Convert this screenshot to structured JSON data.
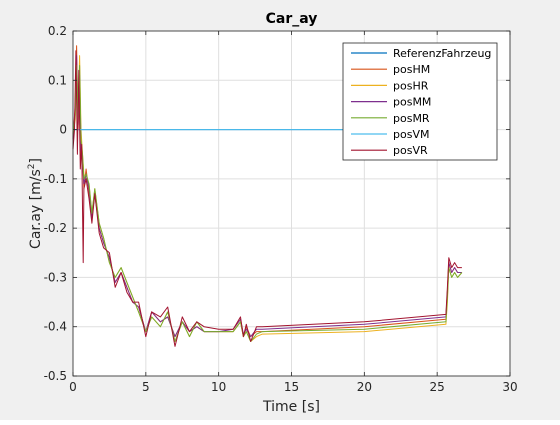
{
  "chart_data": {
    "type": "line",
    "title": "Car_ay",
    "xlabel": "Time [s]",
    "ylabel_main": "Car.ay [m/s",
    "ylabel_sup": "2",
    "ylabel_close": "]",
    "xlim": [
      0,
      30
    ],
    "ylim": [
      -0.5,
      0.2
    ],
    "xticks": [
      0,
      5,
      10,
      15,
      20,
      25,
      30
    ],
    "xtick_labels": [
      "0",
      "5",
      "10",
      "15",
      "20",
      "25",
      "30"
    ],
    "yticks": [
      -0.5,
      -0.4,
      -0.3,
      -0.2,
      -0.1,
      0,
      0.1,
      0.2
    ],
    "ytick_labels": [
      "-0.5",
      "-0.4",
      "-0.3",
      "-0.2",
      "-0.1",
      "0",
      "0.1",
      "0.2"
    ],
    "grid": true,
    "legend_position": "top-right",
    "series": [
      {
        "name": "ReferenzFahrzeug",
        "color": "#0072BD",
        "x": [
          0,
          26.8
        ],
        "y": [
          0,
          0
        ]
      },
      {
        "name": "posHM",
        "color": "#D95319",
        "x": [
          0,
          0.15,
          0.25,
          0.35,
          0.45,
          0.55,
          0.65,
          0.75,
          0.9,
          1.1,
          1.3,
          1.5,
          1.8,
          2.1,
          2.5,
          2.9,
          3.3,
          3.7,
          4.1,
          4.5,
          5.0,
          5.4,
          6.0,
          6.5,
          7.0,
          7.5,
          8.0,
          8.5,
          9.0,
          10.0,
          11.0,
          11.5,
          11.7,
          11.9,
          12.2,
          12.6,
          13.0,
          20.0,
          25.6,
          25.7,
          25.8,
          26.0,
          26.2,
          26.4,
          26.7
        ],
        "y": [
          -0.02,
          0.05,
          0.17,
          0.0,
          0.1,
          -0.05,
          -0.06,
          -0.12,
          -0.08,
          -0.13,
          -0.18,
          -0.13,
          -0.2,
          -0.23,
          -0.26,
          -0.31,
          -0.29,
          -0.32,
          -0.35,
          -0.36,
          -0.41,
          -0.37,
          -0.39,
          -0.38,
          -0.42,
          -0.39,
          -0.41,
          -0.4,
          -0.41,
          -0.41,
          -0.41,
          -0.39,
          -0.42,
          -0.4,
          -0.42,
          -0.41,
          -0.41,
          -0.4,
          -0.385,
          -0.33,
          -0.27,
          -0.29,
          -0.28,
          -0.29,
          -0.29
        ]
      },
      {
        "name": "posHR",
        "color": "#EDB120",
        "x": [
          0,
          0.15,
          0.25,
          0.35,
          0.45,
          0.55,
          0.65,
          0.75,
          0.9,
          1.1,
          1.3,
          1.5,
          1.8,
          2.1,
          2.5,
          2.9,
          3.3,
          3.7,
          4.1,
          4.5,
          5.0,
          5.4,
          6.0,
          6.5,
          7.0,
          7.5,
          8.0,
          8.5,
          9.0,
          10.0,
          11.0,
          11.5,
          11.7,
          11.9,
          12.2,
          12.6,
          13.0,
          20.0,
          25.6,
          25.7,
          25.8,
          26.0,
          26.2,
          26.4,
          26.7
        ],
        "y": [
          -0.01,
          0.02,
          0.12,
          0.03,
          0.15,
          0.0,
          -0.05,
          -0.09,
          -0.1,
          -0.11,
          -0.17,
          -0.12,
          -0.19,
          -0.22,
          -0.27,
          -0.3,
          -0.28,
          -0.31,
          -0.34,
          -0.37,
          -0.41,
          -0.38,
          -0.4,
          -0.37,
          -0.43,
          -0.39,
          -0.42,
          -0.39,
          -0.41,
          -0.41,
          -0.41,
          -0.39,
          -0.42,
          -0.41,
          -0.43,
          -0.42,
          -0.415,
          -0.41,
          -0.395,
          -0.35,
          -0.28,
          -0.3,
          -0.29,
          -0.3,
          -0.29
        ]
      },
      {
        "name": "posMM",
        "color": "#7E2F8E",
        "x": [
          0,
          0.15,
          0.25,
          0.35,
          0.45,
          0.55,
          0.65,
          0.75,
          0.9,
          1.1,
          1.3,
          1.5,
          1.8,
          2.1,
          2.5,
          2.9,
          3.3,
          3.7,
          4.1,
          4.5,
          5.0,
          5.4,
          6.0,
          6.5,
          7.0,
          7.5,
          8.0,
          8.5,
          9.0,
          10.0,
          11.0,
          11.5,
          11.7,
          11.9,
          12.2,
          12.6,
          13.0,
          20.0,
          25.6,
          25.7,
          25.8,
          26.0,
          26.2,
          26.4,
          26.7
        ],
        "y": [
          -0.02,
          0.04,
          0.15,
          0.01,
          0.11,
          -0.04,
          -0.06,
          -0.11,
          -0.09,
          -0.12,
          -0.18,
          -0.13,
          -0.2,
          -0.23,
          -0.26,
          -0.31,
          -0.29,
          -0.32,
          -0.35,
          -0.36,
          -0.41,
          -0.37,
          -0.39,
          -0.38,
          -0.42,
          -0.39,
          -0.41,
          -0.4,
          -0.41,
          -0.41,
          -0.405,
          -0.385,
          -0.415,
          -0.405,
          -0.42,
          -0.405,
          -0.405,
          -0.395,
          -0.38,
          -0.33,
          -0.27,
          -0.29,
          -0.28,
          -0.29,
          -0.29
        ]
      },
      {
        "name": "posMR",
        "color": "#77AC30",
        "x": [
          0,
          0.15,
          0.25,
          0.35,
          0.45,
          0.55,
          0.65,
          0.75,
          0.9,
          1.1,
          1.3,
          1.5,
          1.8,
          2.1,
          2.5,
          2.9,
          3.3,
          3.7,
          4.1,
          4.5,
          5.0,
          5.4,
          6.0,
          6.5,
          7.0,
          7.5,
          8.0,
          8.5,
          9.0,
          10.0,
          11.0,
          11.5,
          11.7,
          11.9,
          12.2,
          12.6,
          13.0,
          20.0,
          25.6,
          25.7,
          25.8,
          26.0,
          26.2,
          26.4,
          26.7
        ],
        "y": [
          -0.01,
          0.03,
          0.13,
          0.02,
          0.13,
          -0.02,
          -0.05,
          -0.1,
          -0.09,
          -0.11,
          -0.17,
          -0.12,
          -0.19,
          -0.22,
          -0.27,
          -0.3,
          -0.28,
          -0.31,
          -0.34,
          -0.37,
          -0.41,
          -0.38,
          -0.4,
          -0.37,
          -0.43,
          -0.39,
          -0.42,
          -0.39,
          -0.41,
          -0.41,
          -0.41,
          -0.39,
          -0.42,
          -0.41,
          -0.43,
          -0.415,
          -0.41,
          -0.405,
          -0.39,
          -0.34,
          -0.28,
          -0.3,
          -0.29,
          -0.3,
          -0.29
        ]
      },
      {
        "name": "posVM",
        "color": "#4DBEEE",
        "x": [
          0,
          26.8
        ],
        "y": [
          0,
          0
        ]
      },
      {
        "name": "posVR",
        "color": "#A2142F",
        "x": [
          0,
          0.1,
          0.2,
          0.3,
          0.4,
          0.5,
          0.6,
          0.7,
          0.75,
          0.9,
          1.1,
          1.3,
          1.5,
          1.8,
          2.1,
          2.5,
          2.9,
          3.3,
          3.7,
          4.1,
          4.5,
          5.0,
          5.4,
          6.0,
          6.5,
          7.0,
          7.5,
          8.0,
          8.5,
          9.0,
          10.0,
          11.0,
          11.5,
          11.7,
          11.9,
          12.2,
          12.6,
          13.0,
          20.0,
          25.6,
          25.7,
          25.8,
          26.0,
          26.2,
          26.4,
          26.7
        ],
        "y": [
          -0.04,
          0.0,
          0.16,
          -0.05,
          0.12,
          -0.08,
          -0.03,
          -0.27,
          -0.12,
          -0.1,
          -0.14,
          -0.19,
          -0.13,
          -0.21,
          -0.24,
          -0.25,
          -0.32,
          -0.29,
          -0.33,
          -0.35,
          -0.35,
          -0.42,
          -0.37,
          -0.38,
          -0.36,
          -0.44,
          -0.38,
          -0.41,
          -0.39,
          -0.4,
          -0.405,
          -0.405,
          -0.38,
          -0.42,
          -0.395,
          -0.43,
          -0.4,
          -0.4,
          -0.39,
          -0.375,
          -0.32,
          -0.26,
          -0.28,
          -0.27,
          -0.28,
          -0.28
        ]
      }
    ]
  }
}
